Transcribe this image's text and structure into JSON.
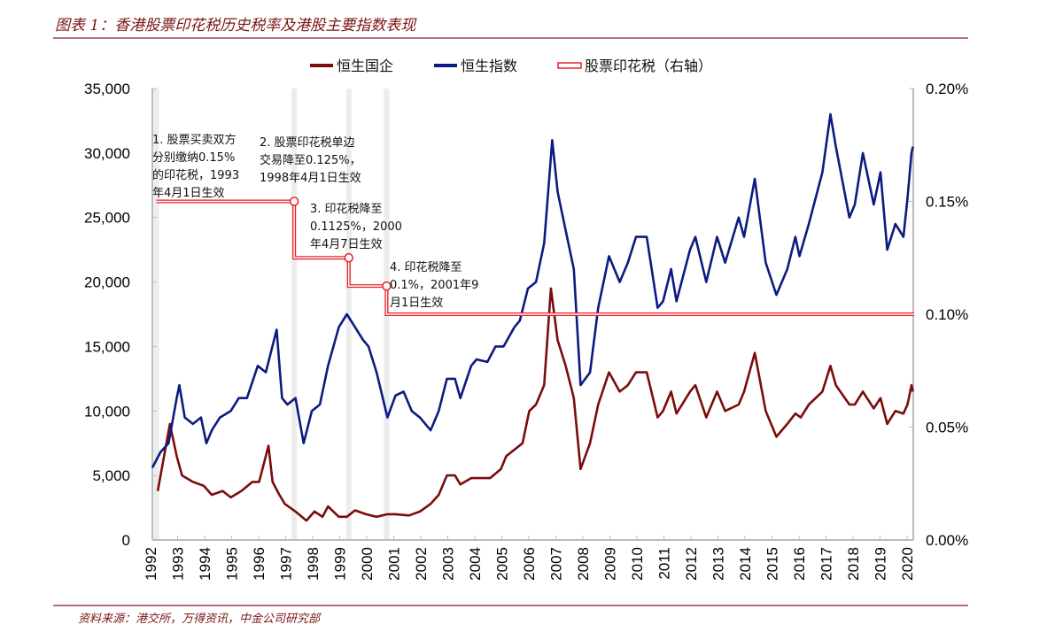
{
  "title": "图表 1：香港股票印花税历史税率及港股主要指数表现",
  "source": "资料来源：港交所，万得资讯，中金公司研究部",
  "colors": {
    "hscei": "#7b0c0c",
    "hsi": "#0b1b80",
    "stamp_duty": "#e8202a",
    "band": "#ececec"
  },
  "chart_data": {
    "type": "line",
    "legend_position": "top",
    "grid": false,
    "x_tick_labels": [
      "1992",
      "1993",
      "1994",
      "1995",
      "1996",
      "1997",
      "1998",
      "1999",
      "2000",
      "2001",
      "2002",
      "2003",
      "2004",
      "2005",
      "2006",
      "2007",
      "2008",
      "2009",
      "2010",
      "2011",
      "2012",
      "2013",
      "2014",
      "2015",
      "2016",
      "2017",
      "2018",
      "2019",
      "2020"
    ],
    "y_left": {
      "lim": [
        0,
        35000
      ],
      "ticks": [
        "0",
        "5,000",
        "10,000",
        "15,000",
        "20,000",
        "25,000",
        "30,000",
        "35,000"
      ]
    },
    "y_right": {
      "lim": [
        0,
        0.2
      ],
      "ticks": [
        "0.00%",
        "0.05%",
        "0.10%",
        "0.15%",
        "0.20%"
      ]
    },
    "series": [
      {
        "name": "恒生国企",
        "axis": "left",
        "color": "#7b0c0c",
        "x": [
          1993.2,
          1993.65,
          1993.9,
          1994.1,
          1994.5,
          1994.9,
          1995.2,
          1995.6,
          1995.9,
          1996.3,
          1996.7,
          1996.95,
          1997.3,
          1997.45,
          1997.7,
          1997.9,
          1998.3,
          1998.7,
          1999.0,
          1999.3,
          1999.5,
          1999.9,
          2000.2,
          2000.5,
          2000.9,
          2001.3,
          2001.7,
          2002.0,
          2002.5,
          2002.9,
          2003.3,
          2003.6,
          2003.9,
          2004.2,
          2004.4,
          2004.8,
          2005.0,
          2005.5,
          2005.9,
          2006.1,
          2006.4,
          2006.7,
          2006.95,
          2007.2,
          2007.5,
          2007.75,
          2008.0,
          2008.3,
          2008.6,
          2008.85,
          2009.2,
          2009.5,
          2009.9,
          2010.3,
          2010.6,
          2010.9,
          2011.3,
          2011.7,
          2011.9,
          2012.2,
          2012.4,
          2012.9,
          2013.1,
          2013.5,
          2013.9,
          2014.2,
          2014.7,
          2014.9,
          2015.3,
          2015.7,
          2016.1,
          2016.5,
          2016.8,
          2017.0,
          2017.3,
          2017.8,
          2018.1,
          2018.3,
          2018.8,
          2019.0,
          2019.3,
          2019.7,
          2019.95,
          2020.2,
          2020.5,
          2020.8,
          2020.95,
          2021.1,
          2021.15
        ],
        "y": [
          3800,
          9000,
          6500,
          5000,
          4500,
          4200,
          3500,
          3800,
          3300,
          3800,
          4500,
          4500,
          7300,
          4500,
          3500,
          2800,
          2200,
          1500,
          2200,
          1800,
          2600,
          1800,
          1800,
          2300,
          2000,
          1800,
          2000,
          2000,
          1900,
          2200,
          2800,
          3500,
          5000,
          5000,
          4300,
          4800,
          4800,
          4800,
          5500,
          6500,
          7000,
          7500,
          10000,
          10500,
          12000,
          19500,
          15500,
          13500,
          11000,
          5500,
          7500,
          10500,
          13000,
          11500,
          12000,
          13000,
          13000,
          9500,
          10000,
          11500,
          9800,
          11500,
          12000,
          9500,
          11500,
          10000,
          10500,
          11500,
          14500,
          10000,
          8000,
          9000,
          9800,
          9500,
          10500,
          11500,
          13500,
          12000,
          10500,
          10500,
          11500,
          10200,
          11000,
          9000,
          10000,
          9800,
          10500,
          12000,
          11500
        ]
      },
      {
        "name": "恒生指数",
        "axis": "left",
        "color": "#0b1b80",
        "x": [
          1993.0,
          1993.3,
          1993.6,
          1993.9,
          1994.0,
          1994.2,
          1994.5,
          1994.8,
          1995.0,
          1995.2,
          1995.5,
          1995.9,
          1996.2,
          1996.5,
          1996.9,
          1997.2,
          1997.6,
          1997.8,
          1998.0,
          1998.3,
          1998.6,
          1998.9,
          1999.2,
          1999.5,
          1999.9,
          2000.2,
          2000.5,
          2000.8,
          2001.0,
          2001.3,
          2001.7,
          2002.0,
          2002.3,
          2002.6,
          2002.9,
          2003.3,
          2003.6,
          2003.9,
          2004.2,
          2004.4,
          2004.8,
          2005.0,
          2005.4,
          2005.7,
          2006.0,
          2006.4,
          2006.6,
          2006.9,
          2007.2,
          2007.5,
          2007.8,
          2008.0,
          2008.3,
          2008.6,
          2008.85,
          2009.2,
          2009.5,
          2009.9,
          2010.3,
          2010.6,
          2010.9,
          2011.3,
          2011.7,
          2011.9,
          2012.2,
          2012.4,
          2012.9,
          2013.1,
          2013.5,
          2013.9,
          2014.2,
          2014.7,
          2014.9,
          2015.3,
          2015.7,
          2016.1,
          2016.5,
          2016.8,
          2016.95,
          2017.3,
          2017.8,
          2018.1,
          2018.3,
          2018.8,
          2019.0,
          2019.3,
          2019.7,
          2019.95,
          2020.2,
          2020.5,
          2020.8,
          2020.95,
          2021.1,
          2021.15
        ],
        "y": [
          5600,
          6800,
          7500,
          11000,
          12000,
          9500,
          9000,
          9500,
          7500,
          8500,
          9500,
          10000,
          11000,
          11000,
          13500,
          13000,
          16300,
          11000,
          10500,
          11000,
          7500,
          10000,
          10500,
          13500,
          16500,
          17500,
          16500,
          15500,
          15000,
          13000,
          9500,
          11200,
          11500,
          10000,
          9500,
          8500,
          10000,
          12500,
          12500,
          11000,
          13500,
          14000,
          13800,
          15000,
          15000,
          16500,
          17000,
          19500,
          20000,
          23000,
          31000,
          27000,
          24000,
          21000,
          12000,
          13000,
          18000,
          22000,
          20000,
          21500,
          23500,
          23500,
          18000,
          18500,
          21000,
          18500,
          22500,
          23500,
          20000,
          23500,
          21500,
          25000,
          23500,
          28000,
          21500,
          19000,
          21000,
          23500,
          22000,
          24500,
          28500,
          33000,
          30500,
          25000,
          26000,
          30000,
          26000,
          28500,
          22500,
          24500,
          23500,
          26500,
          30000,
          30500
        ]
      },
      {
        "name": "股票印花税（右轴）",
        "axis": "right",
        "color": "#e8202a",
        "style": "double-line-step",
        "x": [
          1993.15,
          1998.25,
          2000.27,
          2001.67,
          2021.2
        ],
        "y": [
          0.15,
          0.125,
          0.1125,
          0.1,
          0.1
        ]
      }
    ],
    "annotations": [
      {
        "lines": [
          "1. 股票买卖双方",
          "分别缴纳0.15%",
          "的印花税，1993",
          "年4月1日生效"
        ]
      },
      {
        "lines": [
          "2. 股票印花税单边",
          "交易降至0.125%，",
          "1998年4月1日生效"
        ]
      },
      {
        "lines": [
          "3. 印花税降至",
          "0.1125%，2000",
          "年4月7日生效"
        ]
      },
      {
        "lines": [
          "4. 印花税降至",
          "0.1%，2001年9",
          "月1日生效"
        ]
      }
    ]
  }
}
